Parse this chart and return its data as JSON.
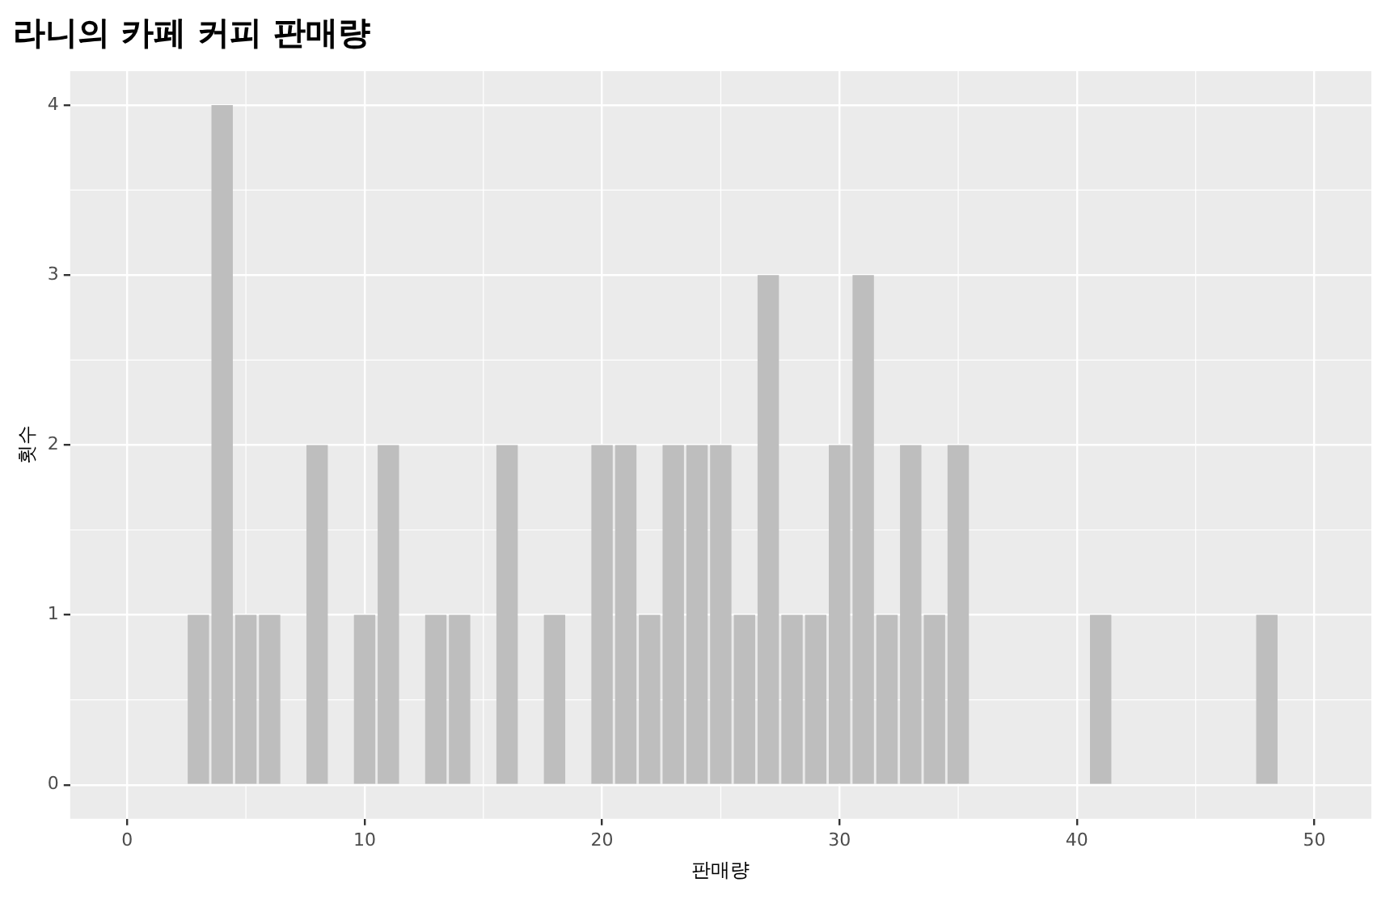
{
  "chart_data": {
    "type": "bar",
    "title": "라니의 카페 커피 판매량",
    "xlabel": "판매량",
    "ylabel": "횟수",
    "x": [
      3,
      4,
      5,
      6,
      8,
      10,
      11,
      13,
      14,
      16,
      18,
      20,
      21,
      22,
      23,
      24,
      25,
      26,
      27,
      28,
      29,
      30,
      31,
      32,
      33,
      34,
      35,
      41,
      48
    ],
    "values": [
      1,
      4,
      1,
      1,
      2,
      1,
      2,
      1,
      1,
      2,
      1,
      2,
      2,
      1,
      2,
      2,
      2,
      1,
      3,
      1,
      1,
      2,
      3,
      1,
      2,
      1,
      2,
      1,
      1
    ],
    "color": "#bebebe",
    "xlim": [
      -2.4,
      52.4
    ],
    "xticks": [
      0,
      10,
      20,
      30,
      40,
      50
    ],
    "ylim": [
      -0.2,
      4.2
    ],
    "yticks": [
      0,
      1,
      2,
      3,
      4
    ],
    "grid": true,
    "legend": false
  }
}
